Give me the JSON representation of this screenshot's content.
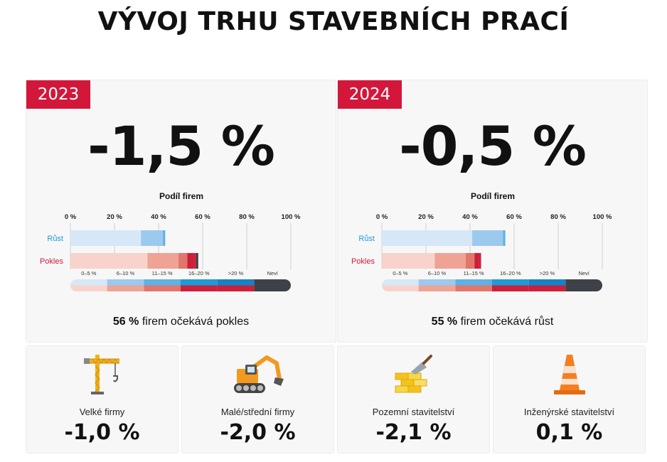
{
  "title": "VÝVOJ TRHU STAVEBNÍCH PRACÍ",
  "colors": {
    "accent": "#d3173b",
    "growth": [
      "#d6e7f8",
      "#9cc9ee",
      "#5fb0e4",
      "#1e9ad7"
    ],
    "decline": [
      "#f7d3cc",
      "#eea395",
      "#e3766b",
      "#cc1f3a"
    ],
    "unknown": "#3e4248"
  },
  "panels": [
    {
      "year": "2023",
      "value": "-1,5 %",
      "summary_pct": "56 %",
      "summary_text": "firem očekává pokles",
      "chart_data": {
        "type": "bar",
        "title": "Podíl firem",
        "orientation": "horizontal-stacked",
        "ticks": [
          "0 %",
          "20 %",
          "40 %",
          "60 %",
          "80 %",
          "100 %"
        ],
        "xlim": [
          0,
          100
        ],
        "categories": [
          "Růst",
          "Pokles"
        ],
        "legend": [
          "0–5 %",
          "6–10 %",
          "11–15 %",
          "16–20 %",
          ">20 %",
          "Neví"
        ],
        "series": [
          {
            "name": "0–5 %",
            "values": [
              32,
              35
            ]
          },
          {
            "name": "6–10 %",
            "values": [
              10,
              14
            ]
          },
          {
            "name": "11–15 %",
            "values": [
              1,
              4
            ]
          },
          {
            "name": "16–20 %",
            "values": [
              0,
              3
            ]
          },
          {
            "name": ">20 %",
            "values": [
              0,
              1
            ]
          },
          {
            "name": "Neví",
            "values": [
              0,
              1
            ]
          }
        ]
      }
    },
    {
      "year": "2024",
      "value": "-0,5 %",
      "summary_pct": "55 %",
      "summary_text": "firem očekává růst",
      "chart_data": {
        "type": "bar",
        "title": "Podíl firem",
        "orientation": "horizontal-stacked",
        "ticks": [
          "0 %",
          "20 %",
          "40 %",
          "60 %",
          "80 %",
          "100 %"
        ],
        "xlim": [
          0,
          100
        ],
        "categories": [
          "Růst",
          "Pokles"
        ],
        "legend": [
          "0–5 %",
          "6–10 %",
          "11–15 %",
          "16–20 %",
          ">20 %",
          "Neví"
        ],
        "series": [
          {
            "name": "0–5 %",
            "values": [
              41,
              24
            ]
          },
          {
            "name": "6–10 %",
            "values": [
              14,
              14
            ]
          },
          {
            "name": "11–15 %",
            "values": [
              1,
              4
            ]
          },
          {
            "name": "16–20 %",
            "values": [
              0,
              2
            ]
          },
          {
            "name": ">20 %",
            "values": [
              0,
              1
            ]
          },
          {
            "name": "Neví",
            "values": [
              0,
              0
            ]
          }
        ]
      }
    }
  ],
  "cards": [
    {
      "label": "Velké firmy",
      "value": "-1,0 %",
      "icon": "crane-icon"
    },
    {
      "label": "Malé/střední firmy",
      "value": "-2,0 %",
      "icon": "excavator-icon"
    },
    {
      "label": "Pozemní stavitelství",
      "value": "-2,1 %",
      "icon": "bricks-trowel-icon"
    },
    {
      "label": "Inženýrské stavitelství",
      "value": "0,1 %",
      "icon": "traffic-cone-icon"
    }
  ]
}
